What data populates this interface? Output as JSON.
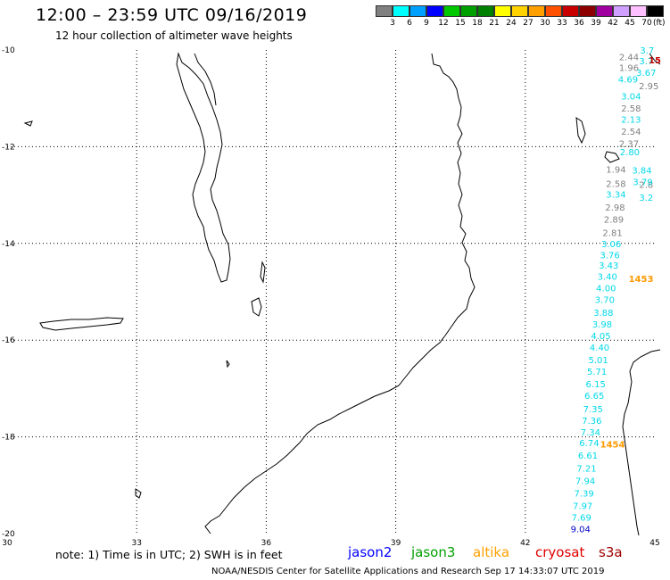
{
  "header": {
    "title": "12:00 – 23:59 UTC 09/16/2019",
    "subtitle": "12 hour collection of altimeter wave heights"
  },
  "legend": {
    "colors": [
      "#808080",
      "#00ffff",
      "#00a0ff",
      "#0000ff",
      "#00c800",
      "#00a000",
      "#008000",
      "#ffff00",
      "#ffd200",
      "#ffa000",
      "#ff5000",
      "#c80000",
      "#8c0000",
      "#a000a0",
      "#d0a0ff",
      "#ffc0ff",
      "#000000"
    ],
    "labels": [
      "3",
      "6",
      "9",
      "12",
      "15",
      "18",
      "21",
      "24",
      "27",
      "30",
      "33",
      "36",
      "39",
      "42",
      "45",
      "70"
    ],
    "unit": "(ft)"
  },
  "axes": {
    "lat_labels": [
      "-10",
      "-12",
      "-14",
      "-16",
      "-18",
      "-20"
    ],
    "lon_labels": [
      "30",
      "33",
      "36",
      "39",
      "42",
      "45"
    ]
  },
  "map": {
    "track_points": [
      {
        "lat": -10.14,
        "lon": 44.4,
        "v": "2.44",
        "color": "#808080"
      },
      {
        "lat": -10.36,
        "lon": 44.4,
        "v": "1.96",
        "color": "#808080"
      },
      {
        "lat": -10.6,
        "lon": 44.38,
        "v": "4.69",
        "color": "#00d8e8"
      },
      {
        "lat": -10.95,
        "lon": 44.45,
        "v": "3.04",
        "color": "#00d8e8"
      },
      {
        "lat": -11.2,
        "lon": 44.45,
        "v": "2.58",
        "color": "#808080"
      },
      {
        "lat": -11.43,
        "lon": 44.45,
        "v": "2.13",
        "color": "#00d8e8"
      },
      {
        "lat": -11.68,
        "lon": 44.45,
        "v": "2.54",
        "color": "#808080"
      },
      {
        "lat": -11.93,
        "lon": 44.4,
        "v": "2.37",
        "color": "#808080"
      },
      {
        "lat": -12.1,
        "lon": 44.42,
        "v": "2.80",
        "color": "#00d8e8"
      },
      {
        "lat": -12.46,
        "lon": 44.1,
        "v": "1.94",
        "color": "#808080"
      },
      {
        "lat": -12.76,
        "lon": 44.1,
        "v": "2.58",
        "color": "#808080"
      },
      {
        "lat": -12.98,
        "lon": 44.1,
        "v": "3.34",
        "color": "#00d8e8"
      },
      {
        "lat": -13.25,
        "lon": 44.08,
        "v": "2.98",
        "color": "#808080"
      },
      {
        "lat": -13.5,
        "lon": 44.05,
        "v": "2.89",
        "color": "#808080"
      },
      {
        "lat": -13.77,
        "lon": 44.02,
        "v": "2.81",
        "color": "#808080"
      },
      {
        "lat": -14.0,
        "lon": 43.99,
        "v": "3.06",
        "color": "#00d8e8"
      },
      {
        "lat": -14.23,
        "lon": 43.96,
        "v": "3.76",
        "color": "#00d8e8"
      },
      {
        "lat": -14.45,
        "lon": 43.93,
        "v": "3.43",
        "color": "#00d8e8"
      },
      {
        "lat": -14.68,
        "lon": 43.9,
        "v": "3.40",
        "color": "#00d8e8"
      },
      {
        "lat": -14.92,
        "lon": 43.87,
        "v": "4.00",
        "color": "#00d8e8"
      },
      {
        "lat": -15.16,
        "lon": 43.84,
        "v": "3.70",
        "color": "#00d8e8"
      },
      {
        "lat": -15.42,
        "lon": 43.81,
        "v": "3.88",
        "color": "#00d8e8"
      },
      {
        "lat": -15.66,
        "lon": 43.78,
        "v": "3.98",
        "color": "#00d8e8"
      },
      {
        "lat": -15.9,
        "lon": 43.75,
        "v": "4.05",
        "color": "#00d8e8"
      },
      {
        "lat": -16.14,
        "lon": 43.72,
        "v": "4.40",
        "color": "#00d8e8"
      },
      {
        "lat": -16.4,
        "lon": 43.69,
        "v": "5.01",
        "color": "#00d8e8"
      },
      {
        "lat": -16.64,
        "lon": 43.66,
        "v": "5.71",
        "color": "#00d8e8"
      },
      {
        "lat": -16.9,
        "lon": 43.63,
        "v": "6.15",
        "color": "#00d8e8"
      },
      {
        "lat": -17.14,
        "lon": 43.6,
        "v": "6.65",
        "color": "#00d8e8"
      },
      {
        "lat": -17.42,
        "lon": 43.57,
        "v": "7.35",
        "color": "#00d8e8"
      },
      {
        "lat": -17.66,
        "lon": 43.54,
        "v": "7.36",
        "color": "#00d8e8"
      },
      {
        "lat": -17.9,
        "lon": 43.51,
        "v": "7.34",
        "color": "#00d8e8"
      },
      {
        "lat": -18.12,
        "lon": 43.48,
        "v": "6.74",
        "color": "#00d8e8"
      },
      {
        "lat": -18.38,
        "lon": 43.45,
        "v": "6.61",
        "color": "#00d8e8"
      },
      {
        "lat": -18.64,
        "lon": 43.42,
        "v": "7.21",
        "color": "#00d8e8"
      },
      {
        "lat": -18.9,
        "lon": 43.39,
        "v": "7.94",
        "color": "#00d8e8"
      },
      {
        "lat": -19.16,
        "lon": 43.36,
        "v": "7.39",
        "color": "#00d8e8"
      },
      {
        "lat": -19.42,
        "lon": 43.33,
        "v": "7.97",
        "color": "#00d8e8"
      },
      {
        "lat": -19.66,
        "lon": 43.3,
        "v": "7.69",
        "color": "#00d8e8"
      },
      {
        "lat": -19.9,
        "lon": 43.28,
        "v": "9.04",
        "color": "#0000c8"
      }
    ],
    "edge_points": [
      {
        "lat": -10.0,
        "lon": 44.82,
        "v": "3.7",
        "color": "#00d8e8"
      },
      {
        "lat": -10.22,
        "lon": 44.8,
        "v": "3.7",
        "color": "#00d8e8"
      },
      {
        "lat": -10.46,
        "lon": 44.8,
        "v": "3.67",
        "color": "#00d8e8"
      },
      {
        "lat": -10.74,
        "lon": 44.86,
        "v": "2.95",
        "color": "#808080"
      },
      {
        "lat": -12.78,
        "lon": 44.8,
        "v": "2.8",
        "color": "#808080"
      },
      {
        "lat": -13.04,
        "lon": 44.8,
        "v": "3.2",
        "color": "#00d8e8"
      },
      {
        "lat": -12.48,
        "lon": 44.7,
        "v": "3.84",
        "color": "#00d8e8"
      },
      {
        "lat": -12.72,
        "lon": 44.72,
        "v": "3.79",
        "color": "#00d8e8"
      }
    ],
    "time_marks": [
      {
        "lat": -14.72,
        "lon": 44.68,
        "v": "1453",
        "color": "#ff9a00"
      },
      {
        "lat": -18.15,
        "lon": 44.02,
        "v": "1454",
        "color": "#ff9a00"
      },
      {
        "lat": -10.2,
        "lon": 45.0,
        "v": "15",
        "color": "#c80000"
      }
    ]
  },
  "footnote": {
    "note": "note:  1) Time is in UTC;  2) SWH is in feet",
    "satellites": [
      {
        "name": "jason2",
        "color": "#0000ff"
      },
      {
        "name": "jason3",
        "color": "#00a000"
      },
      {
        "name": "altika",
        "color": "#ffa000"
      },
      {
        "name": "cryosat",
        "color": "#e00000"
      },
      {
        "name": "s3a",
        "color": "#a00000"
      }
    ],
    "credit": "NOAA/NESDIS Center for Satellite Applications and Research    Sep 17 14:33:07 UTC 2019"
  }
}
